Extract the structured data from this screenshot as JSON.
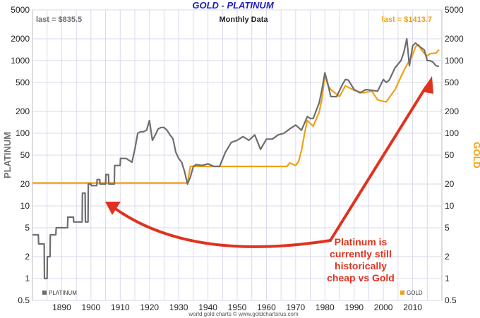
{
  "title": "GOLD - PLATINUM",
  "subtitle": "Monthly Data",
  "last_platinum": "last = $835.5",
  "last_gold": "last = $1413.7",
  "credit": "world gold charts © www.goldchartsrus.com",
  "annotation_lines": [
    "Platinum is",
    "currently still",
    "historically",
    "cheap vs Gold"
  ],
  "colors": {
    "platinum": "#6e6e6e",
    "gold": "#f2a015",
    "annotation": "#e0321e",
    "title": "#1d1dbe",
    "grid": "#d9d9ee"
  },
  "chart_data": {
    "type": "line",
    "title": "GOLD - PLATINUM",
    "subtitle": "Monthly Data",
    "ylabel_left": "PLATINUM",
    "ylabel_right": "GOLD",
    "xlim": [
      1880,
      2020
    ],
    "ylim": [
      0.5,
      5000
    ],
    "yscale": "log",
    "grid": true,
    "x_ticks": [
      1890,
      1900,
      1910,
      1920,
      1930,
      1940,
      1950,
      1960,
      1970,
      1980,
      1990,
      2000,
      2010
    ],
    "y_ticks": [
      0.5,
      1,
      2,
      5,
      10,
      20,
      50,
      100,
      200,
      500,
      1000,
      2000,
      5000
    ],
    "y_tick_labels": [
      "0.5",
      "1",
      "2",
      "5",
      "10",
      "20",
      "50",
      "100",
      "200",
      "500",
      "1000",
      "2000",
      "5000"
    ],
    "legend": [
      "PLATINUM",
      "GOLD"
    ],
    "series": [
      {
        "name": "PLATINUM",
        "x": [
          1880,
          1882,
          1882.1,
          1884,
          1884.1,
          1885,
          1885.1,
          1886,
          1886.1,
          1888,
          1888.1,
          1892,
          1892.1,
          1894,
          1894.1,
          1897,
          1897.1,
          1898,
          1898.1,
          1899,
          1899.1,
          1900,
          1900.1,
          1902,
          1902.1,
          1903,
          1903.1,
          1905,
          1905.1,
          1906,
          1906.1,
          1908,
          1908.1,
          1910,
          1910.1,
          1912,
          1914,
          1915,
          1916,
          1917,
          1918,
          1919,
          1920,
          1921,
          1922,
          1923,
          1924,
          1925,
          1926,
          1927,
          1928,
          1929,
          1930,
          1931,
          1932,
          1933,
          1934,
          1935,
          1936,
          1938,
          1940,
          1942,
          1944,
          1946,
          1948,
          1950,
          1952,
          1954,
          1956,
          1958,
          1960,
          1962,
          1964,
          1966,
          1968,
          1970,
          1972,
          1974,
          1975,
          1976,
          1978,
          1979,
          1980,
          1981,
          1982,
          1984,
          1986,
          1987,
          1988,
          1990,
          1992,
          1994,
          1996,
          1998,
          2000,
          2001,
          2002,
          2004,
          2006,
          2007,
          2008,
          2008.9,
          2010,
          2011,
          2012,
          2013,
          2014,
          2015,
          2016,
          2017,
          2018,
          2019
        ],
        "values": [
          4,
          4,
          3,
          3,
          1,
          1,
          2,
          2,
          4,
          4,
          5,
          5,
          7,
          7,
          6,
          6,
          15,
          15,
          6,
          6,
          20,
          20,
          19,
          19,
          23,
          23,
          20,
          20,
          27,
          27,
          20,
          20,
          36,
          36,
          45,
          45,
          40,
          60,
          100,
          105,
          105,
          110,
          150,
          80,
          95,
          115,
          120,
          120,
          110,
          95,
          85,
          55,
          45,
          40,
          30,
          20,
          25,
          35,
          37,
          36,
          38,
          35,
          35,
          55,
          75,
          80,
          90,
          80,
          95,
          60,
          83,
          83,
          95,
          100,
          115,
          130,
          110,
          170,
          160,
          160,
          260,
          400,
          680,
          480,
          320,
          320,
          470,
          550,
          540,
          400,
          360,
          400,
          390,
          380,
          550,
          500,
          540,
          800,
          1000,
          1300,
          2000,
          850,
          1600,
          1750,
          1600,
          1500,
          1400,
          1000,
          1000,
          950,
          850,
          835
        ]
      },
      {
        "name": "GOLD",
        "x": [
          1880,
          1933,
          1934,
          1945,
          1950,
          1960,
          1967,
          1968,
          1970,
          1971,
          1972,
          1973,
          1974,
          1976,
          1978,
          1979,
          1980,
          1981,
          1982,
          1985,
          1987,
          1990,
          1993,
          1996,
          1998,
          1999,
          2000,
          2001,
          2002,
          2004,
          2006,
          2008,
          2010,
          2011,
          2012,
          2013,
          2014,
          2015,
          2016,
          2017,
          2018,
          2019
        ],
        "values": [
          20.67,
          20.67,
          35,
          35,
          35,
          35,
          35,
          39,
          36,
          41,
          58,
          97,
          150,
          125,
          193,
          300,
          650,
          460,
          400,
          320,
          450,
          390,
          360,
          380,
          290,
          280,
          275,
          270,
          310,
          400,
          600,
          870,
          1200,
          1560,
          1670,
          1410,
          1260,
          1160,
          1250,
          1260,
          1270,
          1413.7
        ]
      }
    ]
  }
}
